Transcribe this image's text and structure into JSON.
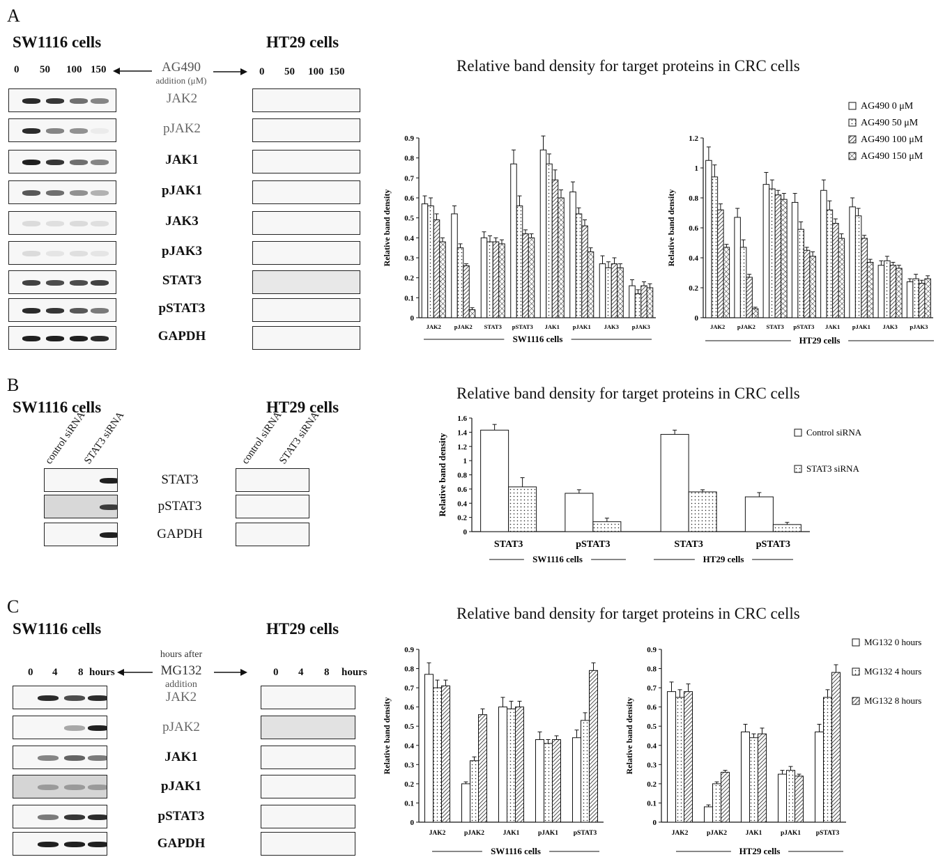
{
  "panels": {
    "A": {
      "letter": "A",
      "left_title": "SW1116 cells",
      "right_title": "HT29 cells",
      "lanes_left": [
        "0",
        "50",
        "100",
        "150"
      ],
      "lanes_right": [
        "0",
        "50",
        "100",
        "150"
      ],
      "treatment": "AG490",
      "treatment_sub": "addition (μM)",
      "proteins": [
        "JAK2",
        "pJAK2",
        "JAK1",
        "pJAK1",
        "JAK3",
        "pJAK3",
        "STAT3",
        "pSTAT3",
        "GAPDH"
      ],
      "chart_title": "Relative band density for target proteins in CRC cells",
      "legend": [
        "AG490 0 μM",
        "AG490 50 μM",
        "AG490 100 μM",
        "AG490 150 μM"
      ]
    },
    "B": {
      "letter": "B",
      "left_title": "SW1116 cells",
      "right_title": "HT29 cells",
      "lane_labels": [
        "control siRNA",
        "STAT3 siRNA"
      ],
      "proteins": [
        "STAT3",
        "pSTAT3",
        "GAPDH"
      ],
      "chart_title": "Relative band density for target proteins in CRC cells",
      "legend": [
        "Control siRNA",
        "STAT3 siRNA"
      ]
    },
    "C": {
      "letter": "C",
      "left_title": "SW1116 cells",
      "right_title": "HT29 cells",
      "lanes": [
        "0",
        "4",
        "8"
      ],
      "lanes_unit": "hours",
      "treatment_pre": "hours after",
      "treatment": "MG132",
      "treatment_sub": "addition",
      "proteins": [
        "JAK2",
        "pJAK2",
        "JAK1",
        "pJAK1",
        "pSTAT3",
        "GAPDH"
      ],
      "chart_title": "Relative band density for target proteins in CRC cells",
      "legend": [
        "MG132 0 hours",
        "MG132 4 hours",
        "MG132 8 hours"
      ]
    }
  },
  "chart_data": [
    {
      "type": "bar",
      "panel": "A",
      "group_label": "SW1116 cells",
      "ylabel": "Relative band density",
      "ylim": [
        0,
        0.9
      ],
      "yticks": [
        "0",
        "0.1",
        "0.2",
        "0.3",
        "0.4",
        "0.5",
        "0.6",
        "0.7",
        "0.8",
        "0.9"
      ],
      "categories": [
        "JAK2",
        "pJAK2",
        "STAT3",
        "pSTAT3",
        "JAK1",
        "pJAK1",
        "JAK3",
        "pJAK3"
      ],
      "series": [
        {
          "name": "AG490 0 μM",
          "values": [
            0.57,
            0.52,
            0.4,
            0.77,
            0.84,
            0.63,
            0.27,
            0.16
          ],
          "errors": [
            0.04,
            0.04,
            0.03,
            0.07,
            0.07,
            0.05,
            0.04,
            0.03
          ]
        },
        {
          "name": "AG490 50 μM",
          "values": [
            0.56,
            0.35,
            0.38,
            0.56,
            0.77,
            0.52,
            0.25,
            0.12
          ],
          "errors": [
            0.04,
            0.02,
            0.03,
            0.05,
            0.05,
            0.03,
            0.03,
            0.02
          ]
        },
        {
          "name": "AG490 100 μM",
          "values": [
            0.49,
            0.26,
            0.38,
            0.42,
            0.69,
            0.46,
            0.27,
            0.16
          ],
          "errors": [
            0.03,
            0.01,
            0.02,
            0.02,
            0.05,
            0.03,
            0.03,
            0.02
          ]
        },
        {
          "name": "AG490 150 μM",
          "values": [
            0.38,
            0.04,
            0.37,
            0.4,
            0.6,
            0.33,
            0.25,
            0.15
          ],
          "errors": [
            0.02,
            0.01,
            0.02,
            0.02,
            0.04,
            0.02,
            0.02,
            0.02
          ]
        }
      ]
    },
    {
      "type": "bar",
      "panel": "A",
      "group_label": "HT29 cells",
      "ylabel": "Relative band density",
      "ylim": [
        0,
        1.2
      ],
      "yticks": [
        "0",
        "0.2",
        "0.4",
        "0.6",
        "0.8",
        "1",
        "1.2"
      ],
      "categories": [
        "JAK2",
        "pJAK2",
        "STAT3",
        "pSTAT3",
        "JAK1",
        "pJAK1",
        "JAK3",
        "pJAK3"
      ],
      "series": [
        {
          "name": "AG490 0 μM",
          "values": [
            1.05,
            0.67,
            0.89,
            0.77,
            0.85,
            0.74,
            0.35,
            0.24
          ],
          "errors": [
            0.09,
            0.06,
            0.08,
            0.06,
            0.07,
            0.06,
            0.03,
            0.02
          ]
        },
        {
          "name": "AG490 50 μM",
          "values": [
            0.94,
            0.47,
            0.86,
            0.59,
            0.72,
            0.68,
            0.38,
            0.26
          ],
          "errors": [
            0.08,
            0.05,
            0.06,
            0.05,
            0.06,
            0.05,
            0.03,
            0.03
          ]
        },
        {
          "name": "AG490 100 μM",
          "values": [
            0.72,
            0.27,
            0.82,
            0.45,
            0.63,
            0.53,
            0.35,
            0.23
          ],
          "errors": [
            0.04,
            0.02,
            0.03,
            0.02,
            0.03,
            0.02,
            0.02,
            0.02
          ]
        },
        {
          "name": "AG490 150 μM",
          "values": [
            0.47,
            0.06,
            0.79,
            0.41,
            0.53,
            0.37,
            0.33,
            0.26
          ],
          "errors": [
            0.02,
            0.01,
            0.04,
            0.03,
            0.03,
            0.02,
            0.02,
            0.02
          ]
        }
      ]
    },
    {
      "type": "bar",
      "panel": "B",
      "ylabel": "Relative band density",
      "ylim": [
        0,
        1.6
      ],
      "yticks": [
        "0",
        "0.2",
        "0.4",
        "0.6",
        "0.8",
        "1",
        "1.2",
        "1.4",
        "1.6"
      ],
      "categories": [
        "STAT3",
        "pSTAT3",
        "STAT3",
        "pSTAT3"
      ],
      "groups": [
        "SW1116 cells",
        "HT29 cells"
      ],
      "series": [
        {
          "name": "Control siRNA",
          "values": [
            1.43,
            0.54,
            1.37,
            0.49
          ],
          "errors": [
            0.08,
            0.05,
            0.06,
            0.06
          ]
        },
        {
          "name": "STAT3 siRNA",
          "values": [
            0.63,
            0.14,
            0.56,
            0.1
          ],
          "errors": [
            0.13,
            0.05,
            0.03,
            0.03
          ]
        }
      ]
    },
    {
      "type": "bar",
      "panel": "C",
      "group_label": "SW1116 cells",
      "ylabel": "Relative band density",
      "ylim": [
        0,
        0.9
      ],
      "yticks": [
        "0",
        "0.1",
        "0.2",
        "0.3",
        "0.4",
        "0.5",
        "0.6",
        "0.7",
        "0.8",
        "0.9"
      ],
      "categories": [
        "JAK2",
        "pJAK2",
        "JAK1",
        "pJAK1",
        "pSTAT3"
      ],
      "series": [
        {
          "name": "MG132 0 hours",
          "values": [
            0.77,
            0.2,
            0.6,
            0.43,
            0.44
          ],
          "errors": [
            0.06,
            0.01,
            0.05,
            0.04,
            0.04
          ]
        },
        {
          "name": "MG132 4 hours",
          "values": [
            0.7,
            0.32,
            0.59,
            0.41,
            0.53
          ],
          "errors": [
            0.04,
            0.02,
            0.04,
            0.02,
            0.04
          ]
        },
        {
          "name": "MG132 8 hours",
          "values": [
            0.71,
            0.56,
            0.6,
            0.43,
            0.79
          ],
          "errors": [
            0.03,
            0.03,
            0.03,
            0.02,
            0.04
          ]
        }
      ]
    },
    {
      "type": "bar",
      "panel": "C",
      "group_label": "HT29 cells",
      "ylabel": "Relative band density",
      "ylim": [
        0,
        0.9
      ],
      "yticks": [
        "0",
        "0.1",
        "0.2",
        "0.3",
        "0.4",
        "0.5",
        "0.6",
        "0.7",
        "0.8",
        "0.9"
      ],
      "categories": [
        "JAK2",
        "pJAK2",
        "JAK1",
        "pJAK1",
        "pSTAT3"
      ],
      "series": [
        {
          "name": "MG132 0 hours",
          "values": [
            0.68,
            0.08,
            0.47,
            0.25,
            0.47
          ],
          "errors": [
            0.05,
            0.01,
            0.04,
            0.02,
            0.04
          ]
        },
        {
          "name": "MG132 4 hours",
          "values": [
            0.65,
            0.2,
            0.44,
            0.27,
            0.65
          ],
          "errors": [
            0.04,
            0.01,
            0.02,
            0.02,
            0.04
          ]
        },
        {
          "name": "MG132 8 hours",
          "values": [
            0.68,
            0.26,
            0.46,
            0.24,
            0.78
          ],
          "errors": [
            0.04,
            0.01,
            0.03,
            0.01,
            0.04
          ]
        }
      ]
    }
  ]
}
